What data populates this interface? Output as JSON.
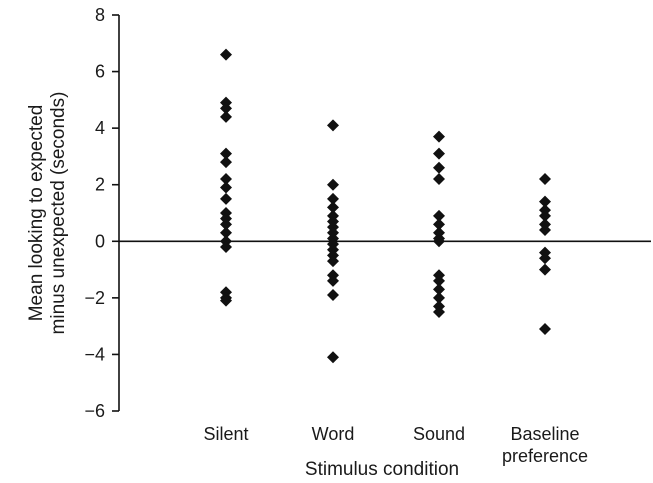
{
  "chart_data": {
    "type": "scatter",
    "title": "",
    "xlabel": "Stimulus condition",
    "ylabel_lines": [
      "Mean looking to expected",
      "minus unexpected (seconds)"
    ],
    "ylim": [
      -6,
      8
    ],
    "yticks": [
      8,
      6,
      4,
      2,
      0,
      -2,
      -4,
      -6
    ],
    "ytick_labels": [
      "8",
      "6",
      "4",
      "2",
      "0",
      "−2",
      "−4",
      "−6"
    ],
    "categories": [
      {
        "id": "silent",
        "label_lines": [
          "Silent"
        ]
      },
      {
        "id": "word",
        "label_lines": [
          "Word"
        ]
      },
      {
        "id": "sound",
        "label_lines": [
          "Sound"
        ]
      },
      {
        "id": "baseline",
        "label_lines": [
          "Baseline",
          "preference"
        ]
      }
    ],
    "series": [
      {
        "category": "silent",
        "values": [
          6.6,
          4.9,
          4.7,
          4.4,
          3.1,
          2.8,
          2.2,
          1.9,
          1.5,
          1.0,
          0.8,
          0.6,
          0.3,
          0.0,
          -0.2,
          -1.8,
          -2.0,
          -2.1
        ]
      },
      {
        "category": "word",
        "values": [
          4.1,
          2.0,
          1.5,
          1.2,
          0.9,
          0.7,
          0.5,
          0.3,
          0.1,
          -0.1,
          -0.3,
          -0.5,
          -0.7,
          -1.2,
          -1.4,
          -1.9,
          -4.1
        ]
      },
      {
        "category": "sound",
        "values": [
          3.7,
          3.1,
          2.6,
          2.2,
          0.9,
          0.6,
          0.3,
          0.1,
          0.0,
          -1.2,
          -1.4,
          -1.7,
          -2.0,
          -2.3,
          -2.5
        ]
      },
      {
        "category": "baseline",
        "values": [
          2.2,
          1.4,
          1.1,
          0.9,
          0.6,
          0.4,
          -0.4,
          -0.6,
          -1.0,
          -3.1
        ]
      }
    ],
    "zero_line": true,
    "marker": "diamond",
    "marker_color": "#111111",
    "grid": false,
    "legend": "none"
  }
}
